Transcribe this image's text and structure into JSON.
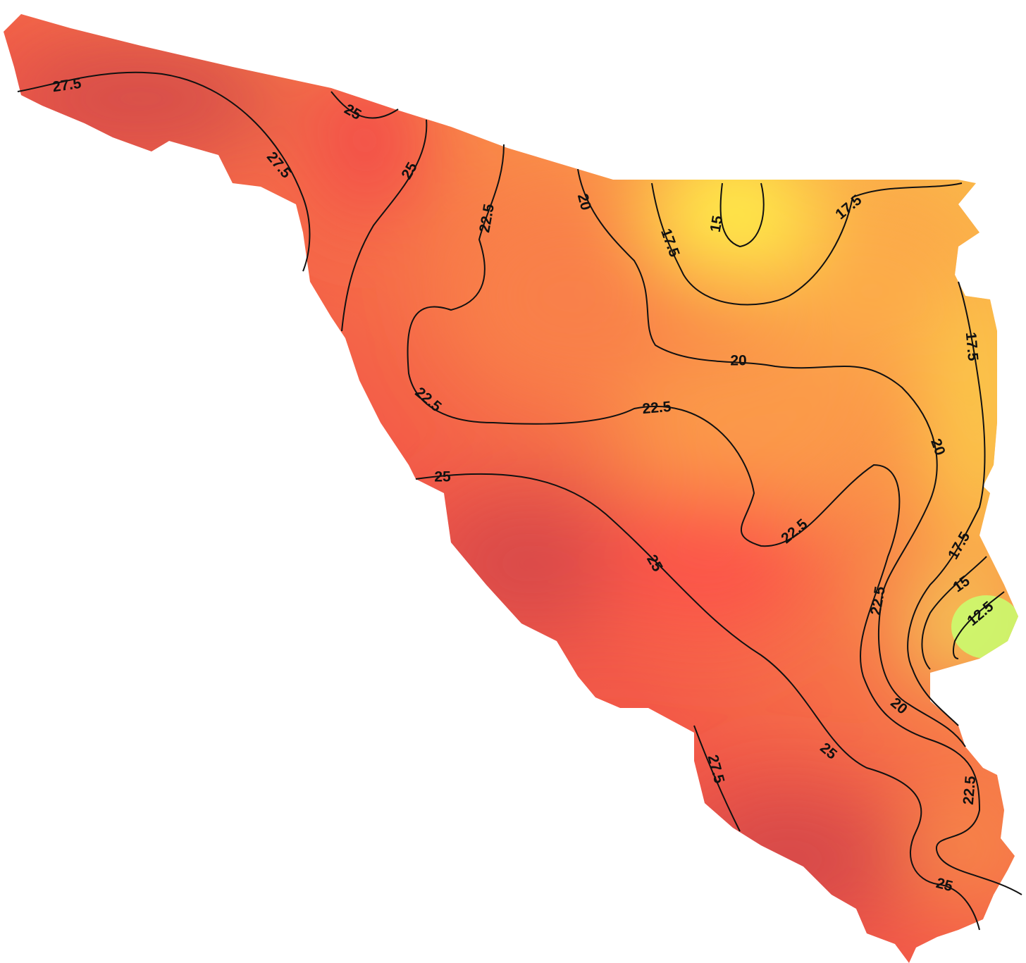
{
  "contour_labels": [
    27.5,
    25,
    27.5,
    25,
    22.5,
    20,
    15,
    17.5,
    17.5,
    17.5,
    20,
    22.5,
    22.5,
    25,
    20,
    22.5,
    25,
    22.5,
    17.5,
    15,
    12.5,
    20,
    25,
    27.5,
    22.5,
    25
  ]
}
